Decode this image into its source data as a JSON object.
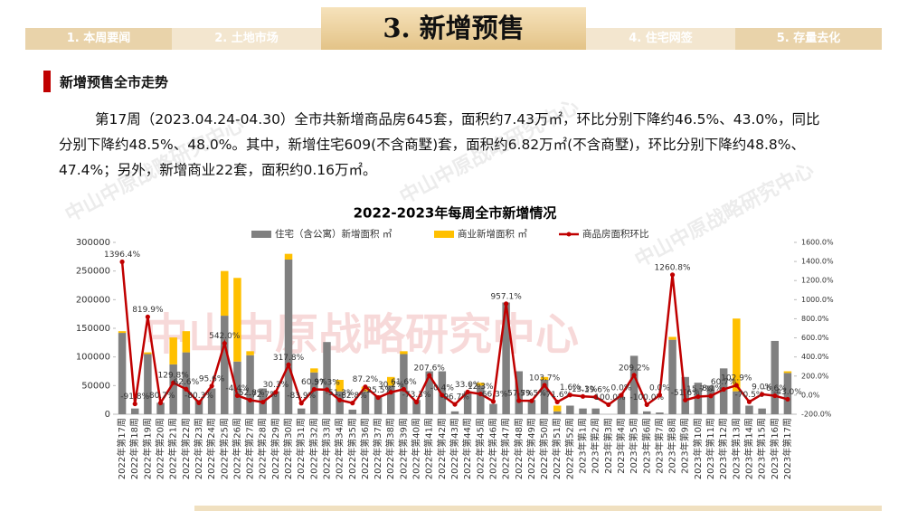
{
  "header": {
    "tabs": [
      "1. 本周要闻",
      "2. 土地市场",
      "3. 新增预售",
      "4. 住宅网签",
      "5. 存量去化"
    ]
  },
  "section_title": "新增预售全市走势",
  "paragraph": [
    "第17周（2023.04.24-04.30）全市共新增商品房645套，面积约7.43万㎡，环比分别下降约46.5%、43.0%，同比",
    "分别下降约48.5%、48.0%。其中，新增住宅609(不含商墅)套，面积约6.82万㎡(不含商墅)，环比分别下降约48.8%、",
    "47.4%；另外，新增商业22套，面积约0.16万㎡。"
  ],
  "watermark": "中山中原战略研究中心",
  "chart_data": {
    "type": "combo",
    "title": "2022-2023年每周全市新增情况",
    "categories": [
      "2022年第17周",
      "2022年第18周",
      "2022年第19周",
      "2022年第20周",
      "2022年第21周",
      "2022年第22周",
      "2022年第23周",
      "2022年第24周",
      "2022年第25周",
      "2022年第26周",
      "2022年第27周",
      "2022年第28周",
      "2022年第29周",
      "2022年第30周",
      "2022年第31周",
      "2022年第32周",
      "2022年第33周",
      "2022年第34周",
      "2022年第35周",
      "2022年第36周",
      "2022年第37周",
      "2022年第38周",
      "2022年第39周",
      "2022年第40周",
      "2022年第41周",
      "2022年第42周",
      "2022年第43周",
      "2022年第44周",
      "2022年第45周",
      "2022年第46周",
      "2022年第47周",
      "2022年第48周",
      "2022年第49周",
      "2022年第50周",
      "2022年第51周",
      "2022年第52周",
      "2023年第1周",
      "2023年第2周",
      "2023年第3周",
      "2023年第4周",
      "2023年第5周",
      "2023年第6周",
      "2023年第7周",
      "2023年第8周",
      "2023年第9周",
      "2023年第10周",
      "2023年第11周",
      "2023年第12周",
      "2023年第13周",
      "2023年第14周",
      "2023年第15周",
      "2023年第16周",
      "2023年第17周"
    ],
    "series": [
      {
        "name": "住宅（含公寓）新增面积 ㎡",
        "type": "bar",
        "color": "#808080",
        "values": [
          142000,
          10000,
          105000,
          20000,
          87000,
          108000,
          25000,
          45000,
          172000,
          92000,
          103000,
          45000,
          40000,
          270000,
          10000,
          73000,
          126000,
          40000,
          8000,
          40000,
          33000,
          50000,
          105000,
          25000,
          75000,
          75000,
          5000,
          40000,
          50000,
          18000,
          195000,
          75000,
          25000,
          60000,
          5000,
          15000,
          10000,
          10000,
          0,
          30000,
          102000,
          5000,
          3000,
          130000,
          65000,
          55000,
          50000,
          80000,
          40000,
          15000,
          10000,
          128000,
          72000
        ]
      },
      {
        "name": "商业新增面积 ㎡",
        "type": "bar",
        "color": "#ffc000",
        "values": [
          3000,
          0,
          3000,
          0,
          47000,
          37000,
          0,
          0,
          78000,
          146000,
          7000,
          0,
          0,
          10000,
          0,
          7000,
          0,
          20000,
          0,
          8000,
          0,
          15000,
          5000,
          0,
          0,
          0,
          0,
          0,
          5000,
          0,
          0,
          0,
          0,
          5000,
          10000,
          0,
          0,
          0,
          0,
          0,
          0,
          0,
          0,
          5000,
          0,
          0,
          0,
          0,
          127000,
          0,
          0,
          0,
          3000
        ]
      },
      {
        "name": "商品房面积环比",
        "type": "line",
        "axis": "y2",
        "color": "#c00000",
        "values": [
          1396.4,
          -91.8,
          819.9,
          -80.7,
          129.8,
          62.6,
          -80.3,
          95.6,
          542.0,
          -4.4,
          -52.8,
          -72.7,
          30.3,
          317.8,
          -83.9,
          60.9,
          57.3,
          -51.3,
          -82.8,
          87.2,
          -25.5,
          30.2,
          61.6,
          -73.3,
          207.6,
          -0.4,
          -96.7,
          33.0,
          12.3,
          -66.3,
          957.1,
          -57.7,
          -59.5,
          103.7,
          -71.6,
          1.6,
          -13.3,
          -19.6,
          -100.0,
          0.0,
          209.2,
          -100.0,
          0.0,
          1260.8,
          -51.6,
          -15.7,
          -8.1,
          60.7,
          102.9,
          -70.5,
          9.0,
          -6.6,
          -43.0
        ],
        "value_labels": [
          "1396.4%",
          "-91.8%",
          "819.9%",
          "-80.7%",
          "129.8%",
          "62.6%",
          "-80.3%",
          "95.6%",
          "542.0%",
          "-4.4%",
          "-52.8%",
          "-72.7%",
          "30.3%",
          "317.8%",
          "-83.9%",
          "60.9%",
          "57.3%",
          "-51.3%",
          "-82.8%",
          "87.2%",
          "-25.5%",
          "30.2%",
          "61.6%",
          "-73.3%",
          "207.6%",
          "-0.4%",
          "-96.7%",
          "33.0%",
          "12.3%",
          "-66.3%",
          "957.1%",
          "-57.7%",
          "-59.5%",
          "103.7%",
          "-71.6%",
          "1.6%",
          "-13.3%",
          "-19.6%",
          "-100.0%",
          "0.0%",
          "209.2%",
          "-100.0%",
          "0.0%",
          "1260.8%",
          "-51.6%",
          "-15.7%",
          "-8.1%",
          "60.7%",
          "102.9%",
          "-70.5%",
          "9.0%",
          "-6.6%",
          "-43.0%"
        ]
      }
    ],
    "ylim": [
      0,
      300000
    ],
    "yticks": [
      0,
      50000,
      100000,
      150000,
      200000,
      250000,
      300000
    ],
    "y2lim": [
      -200,
      1600
    ],
    "y2ticks": [
      {
        "value": -200,
        "label": "-200.0%"
      },
      {
        "value": 0,
        "label": "0.0%"
      },
      {
        "value": 200,
        "label": "200.0%"
      },
      {
        "value": 400,
        "label": "400.0%"
      },
      {
        "value": 600,
        "label": "600.0%"
      },
      {
        "value": 800,
        "label": "800.0%"
      },
      {
        "value": 1000,
        "label": "1000.0%"
      },
      {
        "value": 1200,
        "label": "1200.0%"
      },
      {
        "value": 1400,
        "label": "1400.0%"
      },
      {
        "value": 1600,
        "label": "1600.0%"
      }
    ],
    "grid": false
  }
}
